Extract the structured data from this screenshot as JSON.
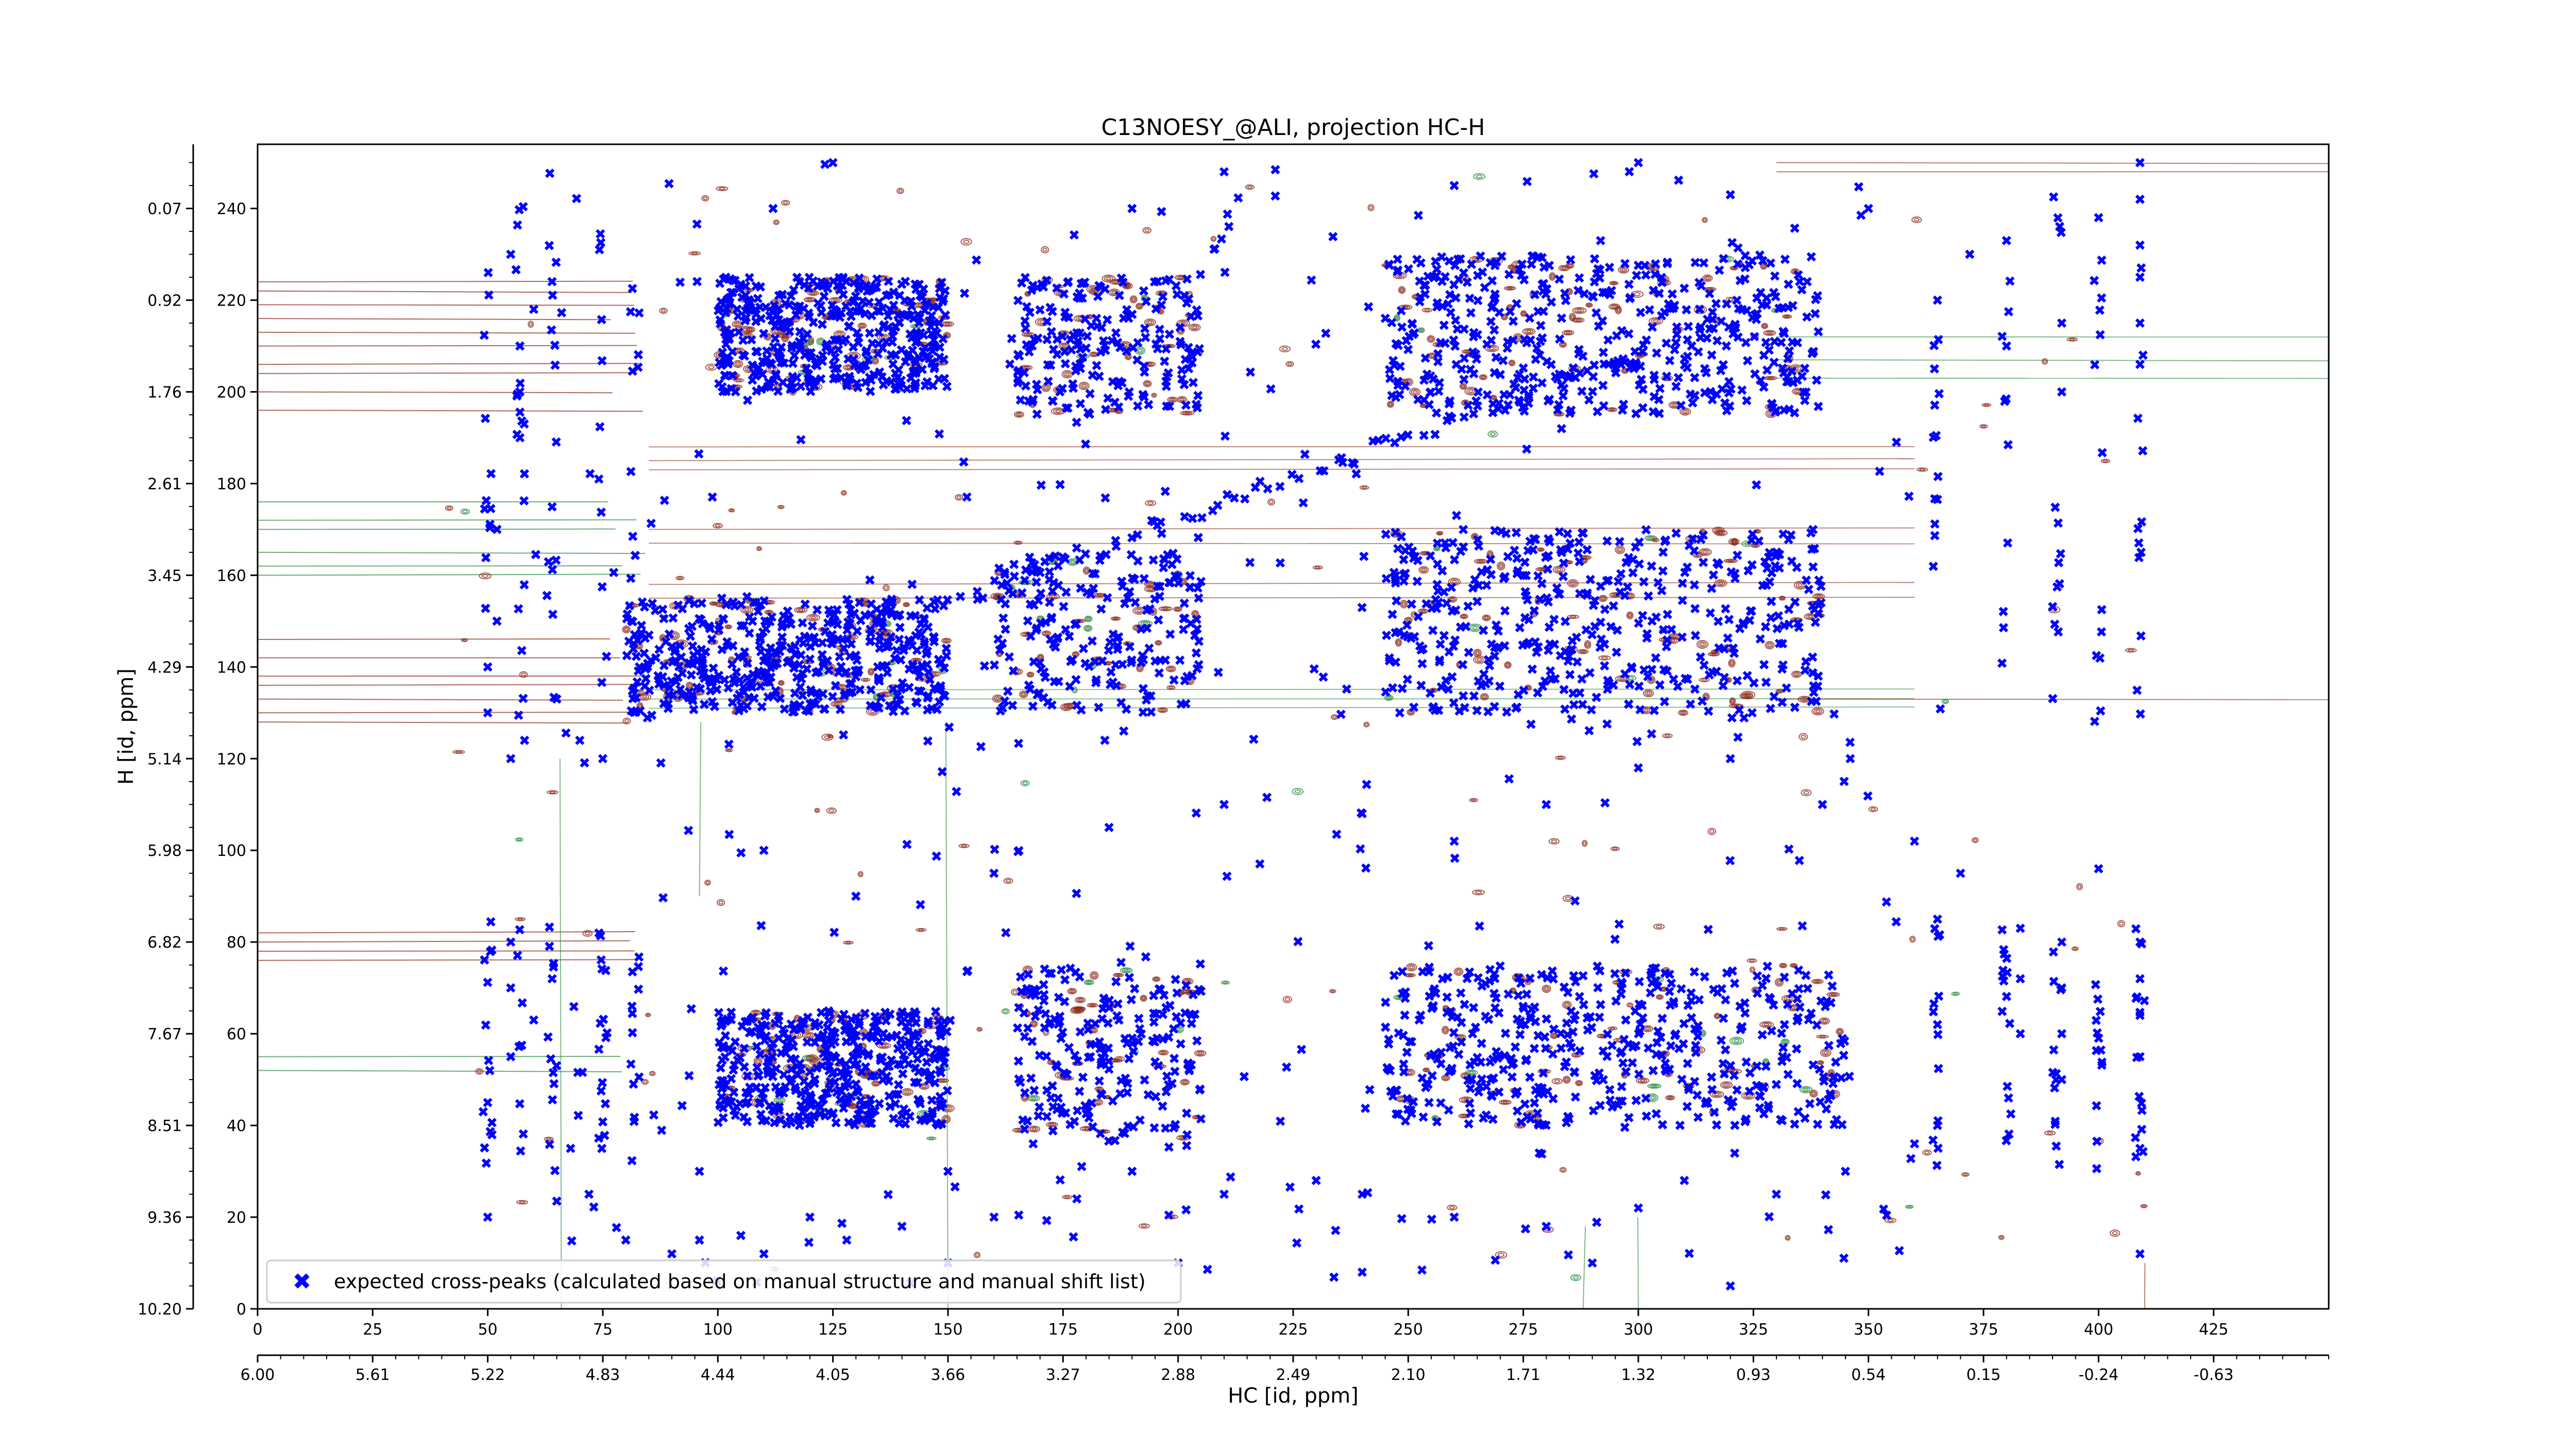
{
  "chart_data": {
    "type": "scatter",
    "title": "C13NOESY_@ALI, projection HC-H",
    "xlabel": "HC [id, ppm]",
    "ylabel": "H [id, ppm]",
    "xlim": [
      0,
      450
    ],
    "ylim": [
      0,
      254
    ],
    "x_ticks": [
      "0",
      "25",
      "50",
      "75",
      "100",
      "125",
      "150",
      "175",
      "200",
      "225",
      "250",
      "275",
      "300",
      "325",
      "350",
      "375",
      "400",
      "425"
    ],
    "x_ppm_ticks": [
      "6.00",
      "5.61",
      "5.22",
      "4.83",
      "4.44",
      "4.05",
      "3.66",
      "3.27",
      "2.88",
      "2.49",
      "2.10",
      "1.71",
      "1.32",
      "0.93",
      "0.54",
      "0.15",
      "-0.24",
      "-0.63"
    ],
    "y_ticks": [
      "0",
      "20",
      "40",
      "60",
      "80",
      "100",
      "120",
      "140",
      "160",
      "180",
      "200",
      "220",
      "240"
    ],
    "y_ppm_ticks": [
      "10.20",
      "9.36",
      "8.51",
      "7.67",
      "6.82",
      "5.98",
      "5.14",
      "4.29",
      "3.45",
      "2.61",
      "1.76",
      "0.92",
      "0.07"
    ],
    "grid": false,
    "legend": {
      "position": "bottom-left",
      "entries": [
        {
          "label": "expected cross-peaks (calculated based on manual structure and manual shift list)",
          "color": "#0000ff",
          "marker": "x"
        }
      ]
    },
    "colors": {
      "peaks": "#0000ff",
      "positive_contours": "#8b2a1a",
      "negative_contours": "#2e8b40"
    },
    "series": [
      {
        "name": "expected cross-peaks (calculated based on manual structure and manual shift list)",
        "kind": "scatter",
        "color": "#0000ff",
        "diagonal": [
          [
            80,
            128
          ],
          [
            88,
            132
          ],
          [
            96,
            136
          ],
          [
            104,
            139
          ],
          [
            112,
            142
          ],
          [
            120,
            145
          ],
          [
            128,
            148
          ],
          [
            136,
            150
          ],
          [
            144,
            152
          ],
          [
            152,
            154
          ],
          [
            160,
            157
          ],
          [
            168,
            160
          ],
          [
            176,
            163
          ],
          [
            184,
            166
          ],
          [
            192,
            169
          ],
          [
            200,
            172
          ],
          [
            208,
            175
          ],
          [
            216,
            178
          ],
          [
            224,
            181
          ],
          [
            232,
            184
          ],
          [
            240,
            187
          ],
          [
            248,
            189
          ],
          [
            256,
            192
          ],
          [
            264,
            195
          ],
          [
            272,
            198
          ],
          [
            280,
            201
          ],
          [
            288,
            204
          ],
          [
            296,
            207
          ],
          [
            304,
            210
          ],
          [
            312,
            213
          ],
          [
            320,
            216
          ]
        ],
        "clusters": [
          {
            "x_range": [
              100,
              150
            ],
            "y_range": [
              200,
              225
            ],
            "density": "high"
          },
          {
            "x_range": [
              165,
              205
            ],
            "y_range": [
              195,
              225
            ],
            "density": "medium"
          },
          {
            "x_range": [
              245,
              340
            ],
            "y_range": [
              195,
              230
            ],
            "density": "high"
          },
          {
            "x_range": [
              80,
              150
            ],
            "y_range": [
              130,
              155
            ],
            "density": "high"
          },
          {
            "x_range": [
              160,
              205
            ],
            "y_range": [
              130,
              165
            ],
            "density": "medium"
          },
          {
            "x_range": [
              245,
              340
            ],
            "y_range": [
              130,
              170
            ],
            "density": "high"
          },
          {
            "x_range": [
              100,
              150
            ],
            "y_range": [
              40,
              65
            ],
            "density": "high"
          },
          {
            "x_range": [
              165,
              205
            ],
            "y_range": [
              35,
              75
            ],
            "density": "medium"
          },
          {
            "x_range": [
              245,
              345
            ],
            "y_range": [
              40,
              75
            ],
            "density": "high"
          }
        ],
        "vertical_stripes_x": [
          50,
          57,
          64,
          75,
          82,
          365,
          380,
          391,
          400,
          409
        ],
        "points": [
          [
            112,
            240
          ],
          [
            125,
            250
          ],
          [
            190,
            240
          ],
          [
            210,
            248
          ],
          [
            260,
            245
          ],
          [
            300,
            250
          ],
          [
            320,
            243
          ],
          [
            350,
            240
          ],
          [
            372,
            230
          ],
          [
            380,
            233
          ],
          [
            400,
            238
          ],
          [
            409,
            250
          ],
          [
            409,
            242
          ],
          [
            409,
            232
          ],
          [
            409,
            225
          ],
          [
            409,
            215
          ],
          [
            409,
            206
          ],
          [
            392,
            215
          ],
          [
            392,
            200
          ],
          [
            380,
            210
          ],
          [
            365,
            220
          ],
          [
            55,
            230
          ],
          [
            60,
            218
          ],
          [
            57,
            200
          ],
          [
            57,
            210
          ],
          [
            57,
            190
          ],
          [
            52,
            170
          ],
          [
            52,
            150
          ],
          [
            50,
            140
          ],
          [
            50,
            130
          ],
          [
            55,
            120
          ],
          [
            58,
            124
          ],
          [
            65,
            133
          ],
          [
            70,
            124
          ],
          [
            75,
            120
          ],
          [
            110,
            100
          ],
          [
            130,
            90
          ],
          [
            160,
            95
          ],
          [
            185,
            105
          ],
          [
            210,
            110
          ],
          [
            240,
            108
          ],
          [
            260,
            102
          ],
          [
            280,
            110
          ],
          [
            300,
            118
          ],
          [
            320,
            120
          ],
          [
            340,
            110
          ],
          [
            360,
            102
          ],
          [
            370,
            95
          ],
          [
            400,
            96
          ],
          [
            409,
            80
          ],
          [
            409,
            72
          ],
          [
            409,
            64
          ],
          [
            409,
            55
          ],
          [
            409,
            35
          ],
          [
            392,
            80
          ],
          [
            392,
            70
          ],
          [
            392,
            60
          ],
          [
            392,
            50
          ],
          [
            383,
            83
          ],
          [
            383,
            72
          ],
          [
            383,
            60
          ],
          [
            365,
            85
          ],
          [
            365,
            62
          ],
          [
            365,
            40
          ],
          [
            55,
            80
          ],
          [
            55,
            70
          ],
          [
            50,
            45
          ],
          [
            50,
            20
          ],
          [
            55,
            55
          ],
          [
            60,
            63
          ],
          [
            64,
            72
          ],
          [
            68,
            35
          ],
          [
            72,
            25
          ],
          [
            80,
            15
          ],
          [
            90,
            12
          ],
          [
            96,
            15
          ],
          [
            105,
            16
          ],
          [
            110,
            12
          ],
          [
            120,
            20
          ],
          [
            128,
            15
          ],
          [
            140,
            18
          ],
          [
            150,
            30
          ],
          [
            160,
            20
          ],
          [
            178,
            24
          ],
          [
            190,
            30
          ],
          [
            210,
            25
          ],
          [
            230,
            28
          ],
          [
            240,
            25
          ],
          [
            260,
            20
          ],
          [
            280,
            18
          ],
          [
            300,
            22
          ],
          [
            310,
            28
          ],
          [
            330,
            25
          ],
          [
            345,
            30
          ],
          [
            360,
            36
          ],
          [
            96,
            30
          ],
          [
            150,
            10
          ],
          [
            200,
            10
          ],
          [
            240,
            8
          ],
          [
            290,
            10
          ],
          [
            320,
            5
          ],
          [
            409,
            12
          ]
        ]
      }
    ]
  }
}
